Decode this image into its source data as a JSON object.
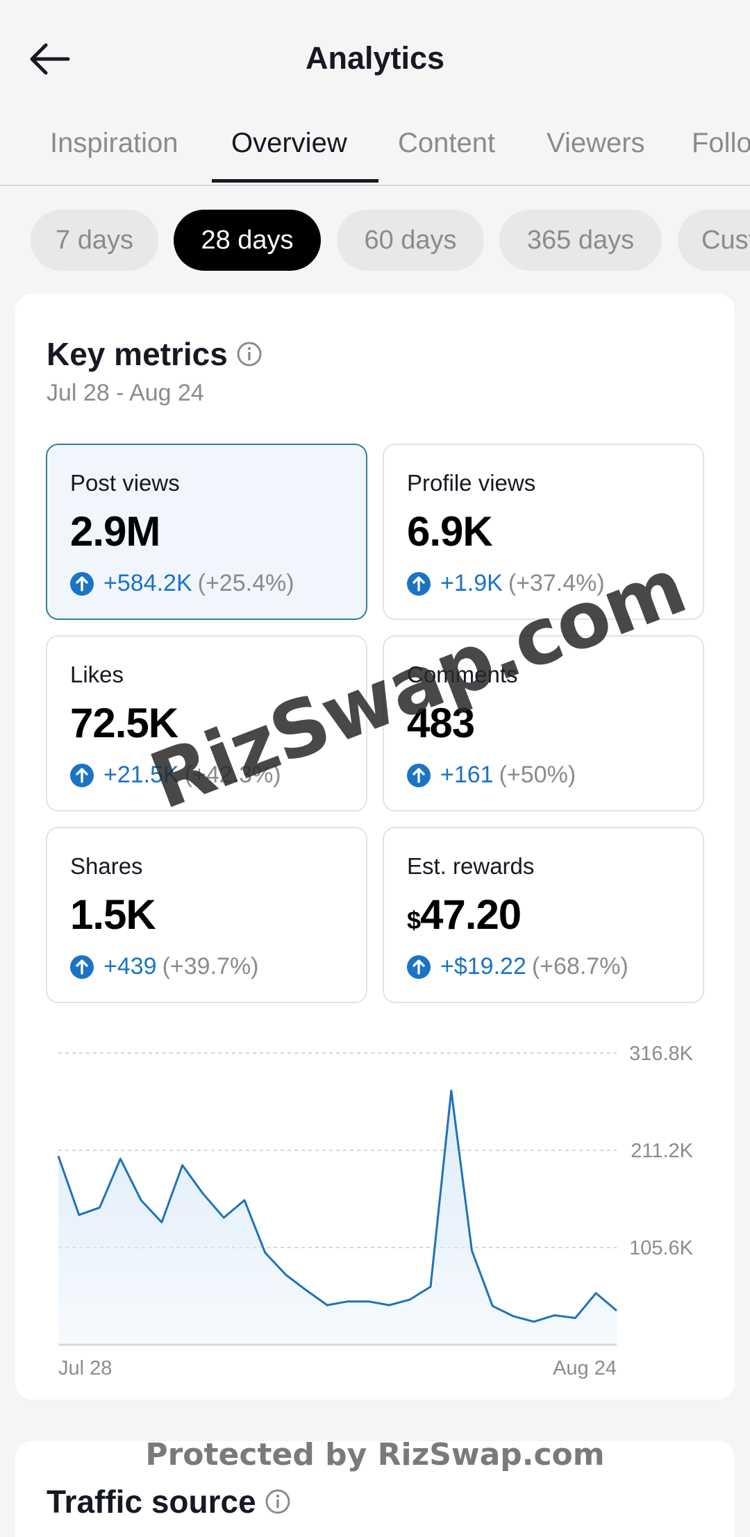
{
  "header": {
    "title": "Analytics"
  },
  "tabs": [
    {
      "label": "Inspiration"
    },
    {
      "label": "Overview",
      "active": true
    },
    {
      "label": "Content"
    },
    {
      "label": "Viewers"
    },
    {
      "label": "Followers"
    }
  ],
  "ranges": [
    {
      "label": "7 days"
    },
    {
      "label": "28 days",
      "active": true
    },
    {
      "label": "60 days"
    },
    {
      "label": "365 days"
    },
    {
      "label": "Custom"
    }
  ],
  "key_metrics": {
    "title": "Key metrics",
    "date_range": "Jul 28 - Aug 24",
    "tiles": [
      {
        "label": "Post views",
        "value": "2.9M",
        "change": "+584.2K",
        "pct": "(+25.4%)"
      },
      {
        "label": "Profile views",
        "value": "6.9K",
        "change": "+1.9K",
        "pct": "(+37.4%)"
      },
      {
        "label": "Likes",
        "value": "72.5K",
        "change": "+21.5K",
        "pct": "(+42.3%)"
      },
      {
        "label": "Comments",
        "value": "483",
        "change": "+161",
        "pct": "(+50%)"
      },
      {
        "label": "Shares",
        "value": "1.5K",
        "change": "+439",
        "pct": "(+39.7%)"
      },
      {
        "label": "Est. rewards",
        "currency": "$",
        "value": "47.20",
        "change": "+$19.22",
        "pct": "(+68.7%)"
      }
    ]
  },
  "chart_data": {
    "type": "area",
    "series": [
      {
        "values": [
          205000,
          141000,
          149000,
          202000,
          157000,
          133000,
          195000,
          164000,
          138000,
          157000,
          100000,
          76000,
          59000,
          43000,
          47000,
          47000,
          43000,
          49000,
          63000,
          276000,
          102000,
          42000,
          31000,
          25000,
          32000,
          29000,
          56000,
          37000
        ]
      }
    ],
    "y_ticks": [
      "316.8K",
      "211.2K",
      "105.6K"
    ],
    "ylim": [
      0,
      316800
    ],
    "x_labels": [
      "Jul 28",
      "Aug 24"
    ],
    "grid": true,
    "colors": {
      "line": "#1f72b8",
      "fill": "#dcebf8"
    }
  },
  "traffic": {
    "title": "Traffic source"
  },
  "watermark": {
    "main": "RizSwap.com",
    "footer": "Protected by RizSwap.com"
  }
}
